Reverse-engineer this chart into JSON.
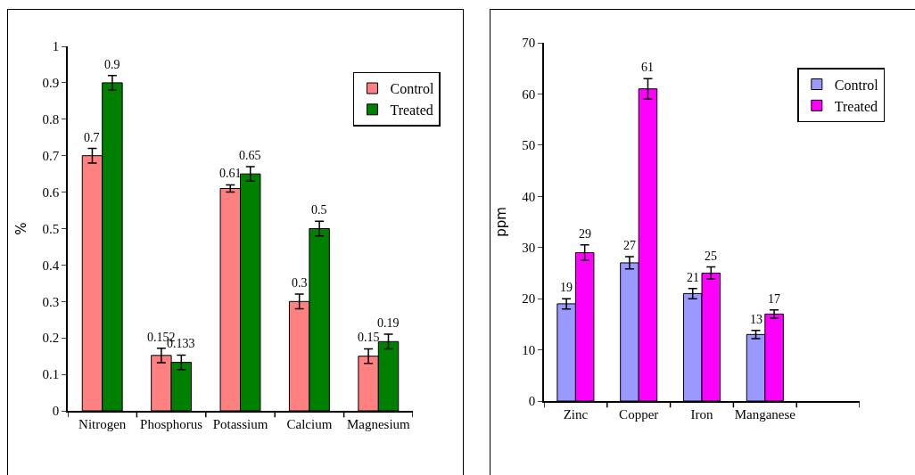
{
  "chart_data": [
    {
      "type": "bar",
      "ylabel": "%",
      "categories": [
        "Nitrogen",
        "Phosphorus",
        "Potassium",
        "Calcium",
        "Magnesium"
      ],
      "ylim": [
        0,
        1
      ],
      "yticks": [
        0,
        0.1,
        0.2,
        0.3,
        0.4,
        0.5,
        0.6,
        0.7,
        0.8,
        0.9,
        1
      ],
      "grid": false,
      "legend": "top right",
      "data_labels": true,
      "series": [
        {
          "name": "Control",
          "color": "#ff8080",
          "values": [
            0.7,
            0.152,
            0.61,
            0.3,
            0.15
          ],
          "errors": [
            0.02,
            0.02,
            0.01,
            0.02,
            0.02
          ]
        },
        {
          "name": "Treated",
          "color": "#008000",
          "values": [
            0.9,
            0.133,
            0.65,
            0.5,
            0.19
          ],
          "errors": [
            0.02,
            0.02,
            0.02,
            0.02,
            0.02
          ]
        }
      ]
    },
    {
      "type": "bar",
      "ylabel": "ppm",
      "categories": [
        "Zinc",
        "Copper",
        "Iron",
        "Manganese",
        null
      ],
      "ylim": [
        0,
        70
      ],
      "yticks": [
        0,
        10,
        20,
        30,
        40,
        50,
        60,
        70
      ],
      "grid": false,
      "legend": "top right",
      "data_labels": true,
      "series": [
        {
          "name": "Control",
          "color": "#9999ff",
          "values": [
            19,
            27,
            21,
            13,
            null
          ],
          "errors": [
            1,
            1.2,
            1,
            0.8,
            null
          ]
        },
        {
          "name": "Treated",
          "color": "#ff00ff",
          "values": [
            29,
            61,
            25,
            17,
            null
          ],
          "errors": [
            1.5,
            2,
            1.2,
            0.8,
            null
          ]
        }
      ]
    }
  ]
}
